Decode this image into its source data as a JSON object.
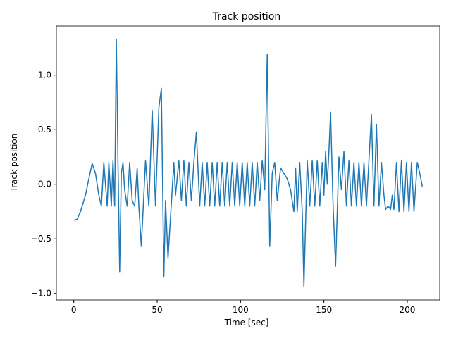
{
  "chart_data": {
    "type": "line",
    "title": "Track position",
    "xlabel": "Time [sec]",
    "ylabel": "Track position",
    "color": "#1f77b4",
    "x": [
      0,
      2,
      4,
      7,
      9,
      11,
      13,
      15,
      16.5,
      18,
      20,
      21,
      22.5,
      23.5,
      24.5,
      25.5,
      26.5,
      27.5,
      28.5,
      29.5,
      30.5,
      32,
      33.5,
      35,
      36.5,
      38,
      39,
      40.5,
      43,
      45,
      47,
      49,
      51,
      52.5,
      54,
      55,
      56.5,
      58,
      60,
      61,
      63,
      64.5,
      66,
      67.5,
      69,
      70.5,
      72,
      73.5,
      75.5,
      77,
      78.5,
      80,
      81.5,
      83,
      84.5,
      86,
      87.5,
      89,
      90.5,
      92,
      93.5,
      95,
      96.5,
      98,
      99.5,
      101,
      102.5,
      104,
      105.5,
      107,
      108.5,
      110,
      111.5,
      113,
      114.5,
      116,
      117.5,
      119,
      120.5,
      122,
      124,
      126,
      128,
      130,
      132,
      133,
      134,
      135.5,
      137,
      138,
      140,
      141.5,
      143,
      144.5,
      146,
      147.5,
      149,
      150,
      151,
      152,
      153,
      154,
      155.5,
      157,
      159,
      160.5,
      162,
      163.5,
      165,
      166.5,
      168,
      169.5,
      171,
      172.5,
      174,
      175.5,
      177,
      178.5,
      180,
      181.5,
      183,
      184.5,
      186,
      187,
      188.5,
      190,
      191,
      192,
      193.5,
      195,
      196.5,
      198,
      199.5,
      201,
      202.5,
      204,
      206,
      207.5,
      209
    ],
    "values": [
      -0.33,
      -0.32,
      -0.25,
      -0.1,
      0.05,
      0.19,
      0.1,
      -0.1,
      -0.2,
      0.2,
      -0.2,
      0.2,
      -0.2,
      0.22,
      -0.2,
      1.33,
      0.2,
      -0.8,
      0.1,
      0.2,
      -0.05,
      -0.2,
      0.2,
      -0.15,
      -0.2,
      0.15,
      -0.2,
      -0.57,
      0.22,
      -0.2,
      0.68,
      -0.2,
      0.7,
      0.88,
      -0.85,
      -0.15,
      -0.68,
      -0.3,
      0.2,
      -0.1,
      0.22,
      -0.15,
      0.22,
      -0.2,
      0.2,
      -0.15,
      0.2,
      0.48,
      -0.2,
      0.2,
      -0.2,
      0.2,
      -0.2,
      0.2,
      -0.2,
      0.2,
      -0.2,
      0.2,
      -0.2,
      0.2,
      -0.2,
      0.2,
      -0.2,
      0.2,
      -0.2,
      0.2,
      -0.2,
      0.2,
      -0.2,
      0.2,
      -0.2,
      0.2,
      -0.15,
      0.22,
      -0.05,
      1.19,
      -0.57,
      0.1,
      0.2,
      -0.15,
      0.15,
      0.1,
      0.05,
      -0.05,
      -0.25,
      0.15,
      -0.25,
      0.2,
      -0.25,
      -0.94,
      0.22,
      -0.2,
      0.22,
      -0.2,
      0.22,
      -0.2,
      0.2,
      -0.1,
      0.3,
      0.0,
      0.3,
      0.66,
      -0.2,
      -0.75,
      0.25,
      -0.05,
      0.3,
      -0.2,
      0.22,
      -0.2,
      0.2,
      -0.2,
      0.2,
      -0.2,
      0.2,
      -0.2,
      0.22,
      0.64,
      -0.2,
      0.55,
      -0.2,
      0.2,
      -0.1,
      -0.23,
      -0.2,
      -0.23,
      -0.1,
      -0.23,
      0.2,
      -0.25,
      0.22,
      -0.25,
      0.2,
      -0.25,
      0.2,
      -0.25,
      0.2,
      0.1,
      -0.02
    ],
    "xlim": [
      -10.45,
      219.45
    ],
    "ylim": [
      -1.06,
      1.45
    ],
    "xticks": [
      0,
      50,
      100,
      150,
      200
    ],
    "yticks": [
      {
        "value": -1,
        "label": "−1.0"
      },
      {
        "value": -0.5,
        "label": "−0.5"
      },
      {
        "value": 0,
        "label": "0.0"
      },
      {
        "value": 0.5,
        "label": "0.5"
      },
      {
        "value": 1,
        "label": "1.0"
      }
    ]
  }
}
